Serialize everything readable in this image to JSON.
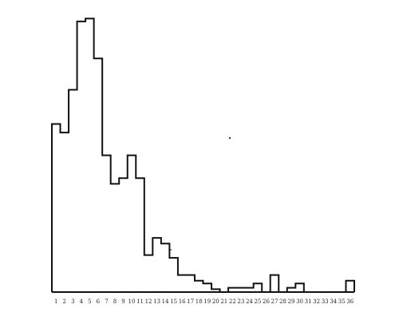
{
  "chart_data": {
    "type": "bar",
    "style": "step-histogram",
    "categories": [
      "1",
      "2",
      "3",
      "4",
      "5",
      "6",
      "7",
      "8",
      "9",
      "10",
      "11",
      "12",
      "13",
      "14",
      "15",
      "16",
      "17",
      "18",
      "19",
      "20",
      "21",
      "22",
      "23",
      "24",
      "25",
      "26",
      "27",
      "28",
      "29",
      "30",
      "31",
      "32",
      "33",
      "34",
      "35",
      "36"
    ],
    "tick_labels": [
      "1",
      "2",
      "3",
      "4",
      "5",
      "6",
      "7",
      "8",
      "9",
      "10",
      "11",
      "12",
      "13",
      "14",
      "15",
      "16",
      "17",
      "18",
      "19",
      "20",
      "21",
      "22",
      "23",
      "24",
      "25",
      "26",
      "27",
      "28",
      "29",
      "30",
      "31",
      "32",
      "33",
      "34",
      "35",
      "36"
    ],
    "values": [
      59,
      56,
      71,
      95,
      96,
      82,
      48,
      38,
      40,
      48,
      40,
      13,
      19,
      17,
      12,
      6,
      6,
      4,
      3,
      1,
      0,
      1.5,
      1.5,
      1.5,
      3,
      0,
      6,
      0,
      1.5,
      3,
      0,
      0,
      0,
      0,
      0,
      4
    ],
    "ylim": [
      0,
      100
    ],
    "grid": false,
    "line_color": "#111111",
    "background": "#ffffff"
  }
}
